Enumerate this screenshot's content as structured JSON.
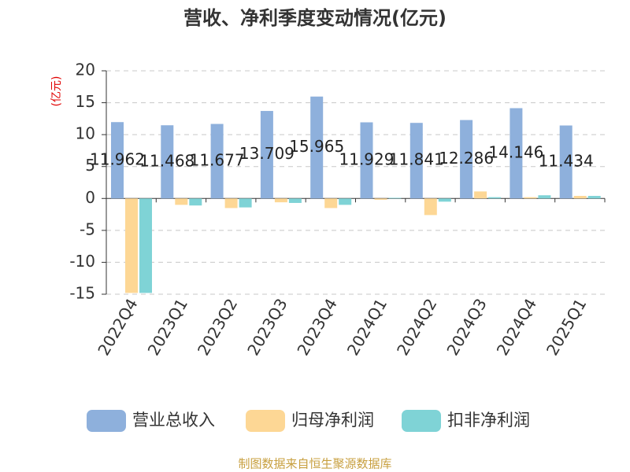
{
  "chart_data": {
    "type": "bar",
    "title": "营收、净利季度变动情况(亿元)",
    "y_label": "(亿元)",
    "source": "制图数据来自恒生聚源数据库",
    "categories": [
      "2022Q4",
      "2023Q1",
      "2023Q2",
      "2023Q3",
      "2023Q4",
      "2024Q1",
      "2024Q2",
      "2024Q3",
      "2024Q4",
      "2025Q1"
    ],
    "series": [
      {
        "name": "营业总收入",
        "color": "#8eb0dc",
        "values": [
          11.962,
          11.468,
          11.677,
          13.709,
          15.965,
          11.929,
          11.841,
          12.286,
          14.146,
          11.434
        ]
      },
      {
        "name": "归母净利润",
        "color": "#fdd795",
        "values": [
          -14.8,
          -1.0,
          -1.5,
          -0.6,
          -1.5,
          -0.2,
          -2.6,
          1.1,
          0.2,
          0.4
        ]
      },
      {
        "name": "扣非净利润",
        "color": "#7fd3d6",
        "values": [
          -14.8,
          -1.1,
          -1.4,
          -0.7,
          -1.0,
          0.1,
          -0.5,
          0.2,
          0.5,
          0.4
        ]
      }
    ],
    "ylim": [
      -15,
      20
    ],
    "yticks": [
      -15,
      -10,
      -5,
      0,
      5,
      10,
      15,
      20
    ],
    "grid": true
  }
}
